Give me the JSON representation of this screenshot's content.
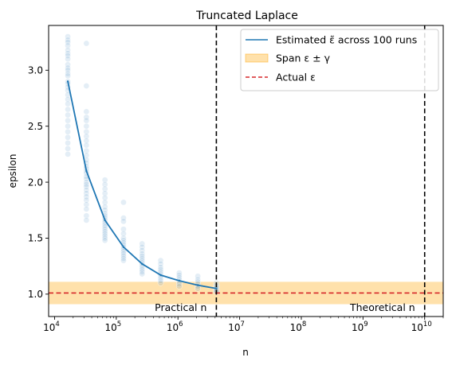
{
  "chart_data": {
    "type": "line",
    "title": "Truncated Laplace",
    "xlabel": "n",
    "ylabel": "epsilon",
    "x_scale": "log",
    "xlim": [
      8000,
      20000000000
    ],
    "ylim": [
      0.8,
      3.4
    ],
    "grid": false,
    "legend_position": "top-right",
    "x_ticks": [
      {
        "value": 10000,
        "base": "10",
        "exp": "4"
      },
      {
        "value": 100000,
        "base": "10",
        "exp": "5"
      },
      {
        "value": 1000000,
        "base": "10",
        "exp": "6"
      },
      {
        "value": 10000000,
        "base": "10",
        "exp": "7"
      },
      {
        "value": 100000000,
        "base": "10",
        "exp": "8"
      },
      {
        "value": 1000000000,
        "base": "10",
        "exp": "9"
      },
      {
        "value": 10000000000,
        "base": "10",
        "exp": "10"
      }
    ],
    "y_ticks": [
      "1.0",
      "1.5",
      "2.0",
      "2.5",
      "3.0"
    ],
    "line_series": {
      "name": "Estimated ε̃ across 100 runs",
      "color": "#1f77b4",
      "x": [
        16384,
        32768,
        65536,
        131072,
        262144,
        524288,
        1048576,
        2097152,
        4194304
      ],
      "y": [
        2.9,
        2.1,
        1.66,
        1.42,
        1.27,
        1.17,
        1.12,
        1.08,
        1.05
      ]
    },
    "scatter_points": {
      "color": "#1f77b4",
      "opacity": 0.12,
      "groups": [
        {
          "x": 16384,
          "y": [
            3.3,
            3.27,
            3.25,
            3.22,
            3.18,
            3.15,
            3.13,
            3.1,
            3.05,
            3.02,
            3.0,
            2.97,
            2.95,
            2.9,
            2.88,
            2.85,
            2.82,
            2.78,
            2.74,
            2.7,
            2.65,
            2.6,
            2.55,
            2.5,
            2.45,
            2.4,
            2.35,
            2.3,
            2.25
          ]
        },
        {
          "x": 32768,
          "y": [
            3.24,
            2.86,
            2.63,
            2.58,
            2.55,
            2.5,
            2.45,
            2.41,
            2.37,
            2.33,
            2.28,
            2.24,
            2.2,
            2.17,
            2.14,
            2.12,
            2.1,
            2.08,
            2.05,
            2.03,
            2.0,
            1.98,
            1.96,
            1.93,
            1.9,
            1.87,
            1.84,
            1.8,
            1.76,
            1.7,
            1.66
          ]
        },
        {
          "x": 65536,
          "y": [
            2.02,
            1.98,
            1.94,
            1.9,
            1.86,
            1.82,
            1.78,
            1.75,
            1.72,
            1.7,
            1.68,
            1.66,
            1.64,
            1.62,
            1.6,
            1.58,
            1.56,
            1.54,
            1.52,
            1.5,
            1.48
          ]
        },
        {
          "x": 131072,
          "y": [
            1.82,
            1.68,
            1.65,
            1.58,
            1.54,
            1.5,
            1.48,
            1.46,
            1.44,
            1.42,
            1.4,
            1.38,
            1.36,
            1.34,
            1.32,
            1.3
          ]
        },
        {
          "x": 262144,
          "y": [
            1.45,
            1.42,
            1.39,
            1.36,
            1.34,
            1.32,
            1.3,
            1.28,
            1.26,
            1.24,
            1.22,
            1.2,
            1.18
          ]
        },
        {
          "x": 524288,
          "y": [
            1.3,
            1.27,
            1.24,
            1.22,
            1.2,
            1.18,
            1.16,
            1.14,
            1.12,
            1.1
          ]
        },
        {
          "x": 1048576,
          "y": [
            1.19,
            1.17,
            1.15,
            1.13,
            1.11,
            1.09,
            1.07
          ]
        },
        {
          "x": 2097152,
          "y": [
            1.16,
            1.13,
            1.11,
            1.09,
            1.07,
            1.05
          ]
        },
        {
          "x": 4194304,
          "y": [
            1.1,
            1.08,
            1.07,
            1.06,
            1.05,
            1.04,
            1.03,
            1.02
          ]
        }
      ]
    },
    "band": {
      "name": "Span ε ± γ",
      "y_low": 0.91,
      "y_high": 1.11,
      "color": "#ffa500",
      "opacity": 0.33
    },
    "hline": {
      "name": "Actual ε",
      "y": 1.01,
      "color": "#d62728"
    },
    "vlines": [
      {
        "x": 4194304,
        "label": "Practical n",
        "color": "#000000"
      },
      {
        "x": 10000000000,
        "label": "Theoretical n",
        "color": "#000000"
      }
    ]
  }
}
